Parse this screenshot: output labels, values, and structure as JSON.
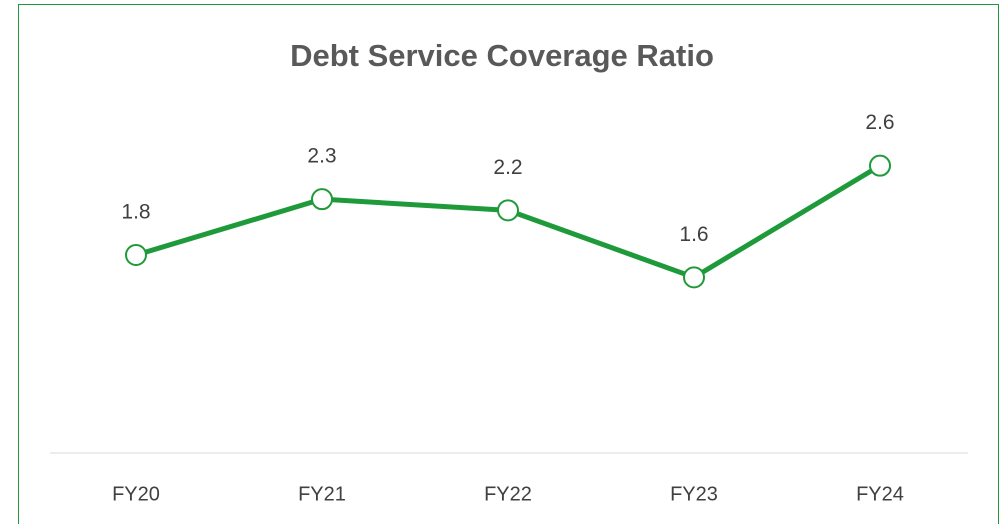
{
  "chart_data": {
    "type": "line",
    "title": "Debt Service Coverage Ratio",
    "categories": [
      "FY20",
      "FY21",
      "FY22",
      "FY23",
      "FY24"
    ],
    "values": [
      1.8,
      2.3,
      2.2,
      1.6,
      2.6
    ],
    "color": "#1f9a3a",
    "ylim": [
      0,
      3
    ]
  }
}
